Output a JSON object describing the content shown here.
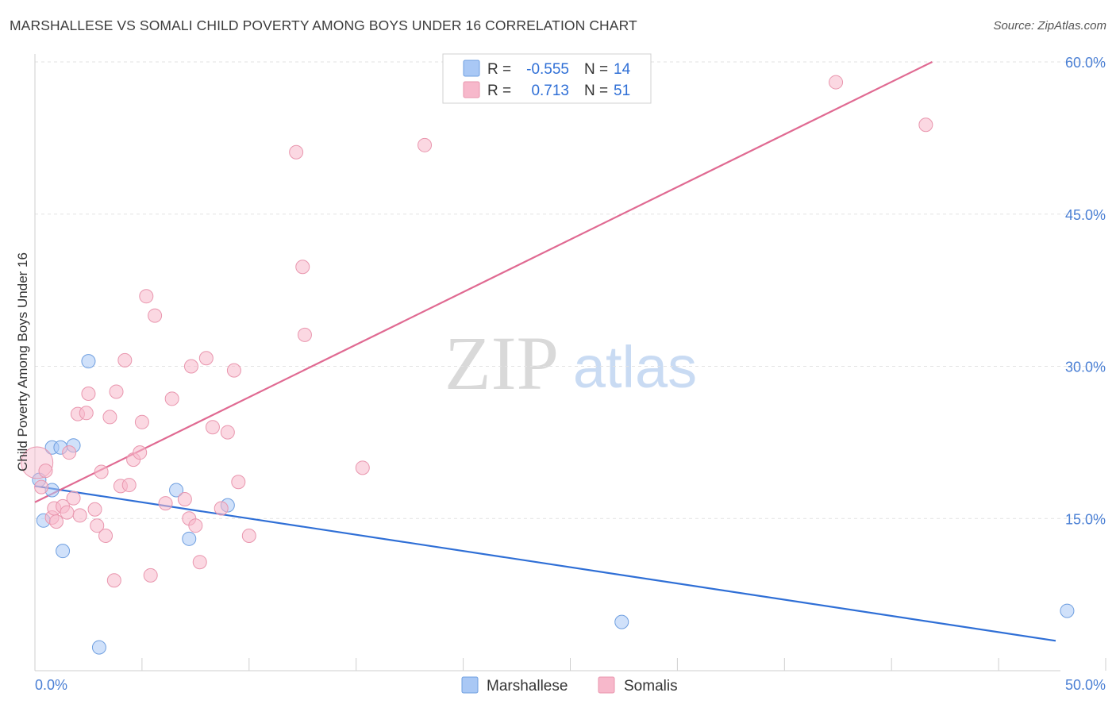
{
  "header": {
    "title": "MARSHALLESE VS SOMALI CHILD POVERTY AMONG BOYS UNDER 16 CORRELATION CHART",
    "source": "Source: ZipAtlas.com"
  },
  "watermark": {
    "zip": "ZIP",
    "atlas": "atlas"
  },
  "legend": {
    "rows": [
      {
        "r_label": "R =",
        "r_value": "-0.555",
        "n_label": "N =",
        "n_value": "14",
        "color": "#a9c8f5"
      },
      {
        "r_label": "R =",
        "r_value": "0.713",
        "n_label": "N =",
        "n_value": "51",
        "color": "#f7b8cb"
      }
    ]
  },
  "chart_data": {
    "type": "scatter",
    "title": "MARSHALLESE VS SOMALI CHILD POVERTY AMONG BOYS UNDER 16 CORRELATION CHART",
    "xlabel": "",
    "ylabel": "Child Poverty Among Boys Under 16",
    "xlim": [
      0,
      50
    ],
    "ylim": [
      0,
      60
    ],
    "x_tick_labels": [
      "0.0%",
      "50.0%"
    ],
    "y_ticks": [
      15,
      30,
      45,
      60
    ],
    "y_tick_labels": [
      "15.0%",
      "30.0%",
      "45.0%",
      "60.0%"
    ],
    "grid": true,
    "legend_position": "top-center",
    "series": [
      {
        "name": "Marshallese",
        "color": "#a9c8f5",
        "stroke": "#6f9fe0",
        "line_color": "#2f6fd6",
        "trend": {
          "x": [
            0,
            50
          ],
          "y": [
            18.2,
            2.2
          ]
        },
        "points": [
          [
            0.2,
            18.8
          ],
          [
            0.4,
            14.8
          ],
          [
            0.8,
            17.8
          ],
          [
            0.8,
            22.0
          ],
          [
            1.2,
            22.0
          ],
          [
            1.3,
            11.8
          ],
          [
            1.8,
            22.2
          ],
          [
            2.5,
            30.5
          ],
          [
            3.0,
            2.3
          ],
          [
            6.6,
            17.8
          ],
          [
            7.2,
            13.0
          ],
          [
            9.0,
            16.3
          ],
          [
            27.4,
            4.8
          ],
          [
            48.2,
            5.9
          ]
        ]
      },
      {
        "name": "Somalis",
        "color": "#f7b8cb",
        "stroke": "#e996ae",
        "line_color": "#e06a92",
        "trend": {
          "x": [
            0,
            41.9
          ],
          "y": [
            16.6,
            60.0
          ]
        },
        "points": [
          [
            0.1,
            20.5
          ],
          [
            0.3,
            18.1
          ],
          [
            0.5,
            19.7
          ],
          [
            0.8,
            15.1
          ],
          [
            0.9,
            16.0
          ],
          [
            1.0,
            14.7
          ],
          [
            1.3,
            16.2
          ],
          [
            1.5,
            15.6
          ],
          [
            1.6,
            21.5
          ],
          [
            1.8,
            17.0
          ],
          [
            2.0,
            25.3
          ],
          [
            2.1,
            15.3
          ],
          [
            2.4,
            25.4
          ],
          [
            2.5,
            27.3
          ],
          [
            2.8,
            15.9
          ],
          [
            2.9,
            14.3
          ],
          [
            3.1,
            19.6
          ],
          [
            3.3,
            13.3
          ],
          [
            3.5,
            25.0
          ],
          [
            3.7,
            8.9
          ],
          [
            3.8,
            27.5
          ],
          [
            4.0,
            18.2
          ],
          [
            4.2,
            30.6
          ],
          [
            4.4,
            18.3
          ],
          [
            4.6,
            20.8
          ],
          [
            4.9,
            21.5
          ],
          [
            5.0,
            24.5
          ],
          [
            5.2,
            36.9
          ],
          [
            5.4,
            9.4
          ],
          [
            5.6,
            35.0
          ],
          [
            6.1,
            16.5
          ],
          [
            6.4,
            26.8
          ],
          [
            7.0,
            16.9
          ],
          [
            7.2,
            15.0
          ],
          [
            7.3,
            30.0
          ],
          [
            7.5,
            14.3
          ],
          [
            7.7,
            10.7
          ],
          [
            8.0,
            30.8
          ],
          [
            8.3,
            24.0
          ],
          [
            8.7,
            16.0
          ],
          [
            9.0,
            23.5
          ],
          [
            9.3,
            29.6
          ],
          [
            9.5,
            18.6
          ],
          [
            10.0,
            13.3
          ],
          [
            12.2,
            51.1
          ],
          [
            12.5,
            39.8
          ],
          [
            12.6,
            33.1
          ],
          [
            15.3,
            20.0
          ],
          [
            18.2,
            51.8
          ],
          [
            37.4,
            58.0
          ],
          [
            41.6,
            53.8
          ]
        ]
      }
    ]
  }
}
